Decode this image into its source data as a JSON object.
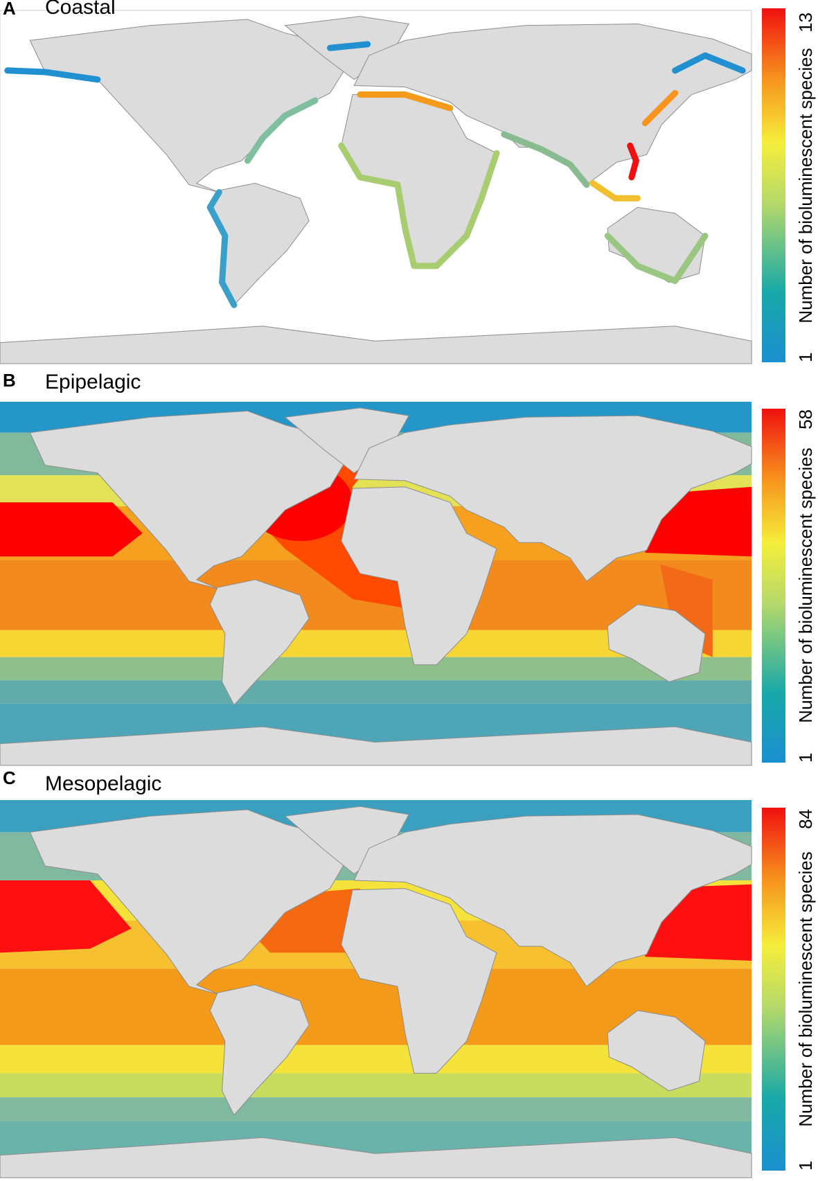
{
  "panels": [
    {
      "letter": "A",
      "title": "Coastal",
      "colorbar": {
        "label": "Number of bioluminescent species",
        "min": "1",
        "max": "13"
      }
    },
    {
      "letter": "B",
      "title": "Epipelagic",
      "colorbar": {
        "label": "Number of bioluminescent species",
        "min": "1",
        "max": "58"
      }
    },
    {
      "letter": "C",
      "title": "Mesopelagic",
      "colorbar": {
        "label": "Number of bioluminescent species",
        "min": "1",
        "max": "84"
      }
    }
  ]
}
